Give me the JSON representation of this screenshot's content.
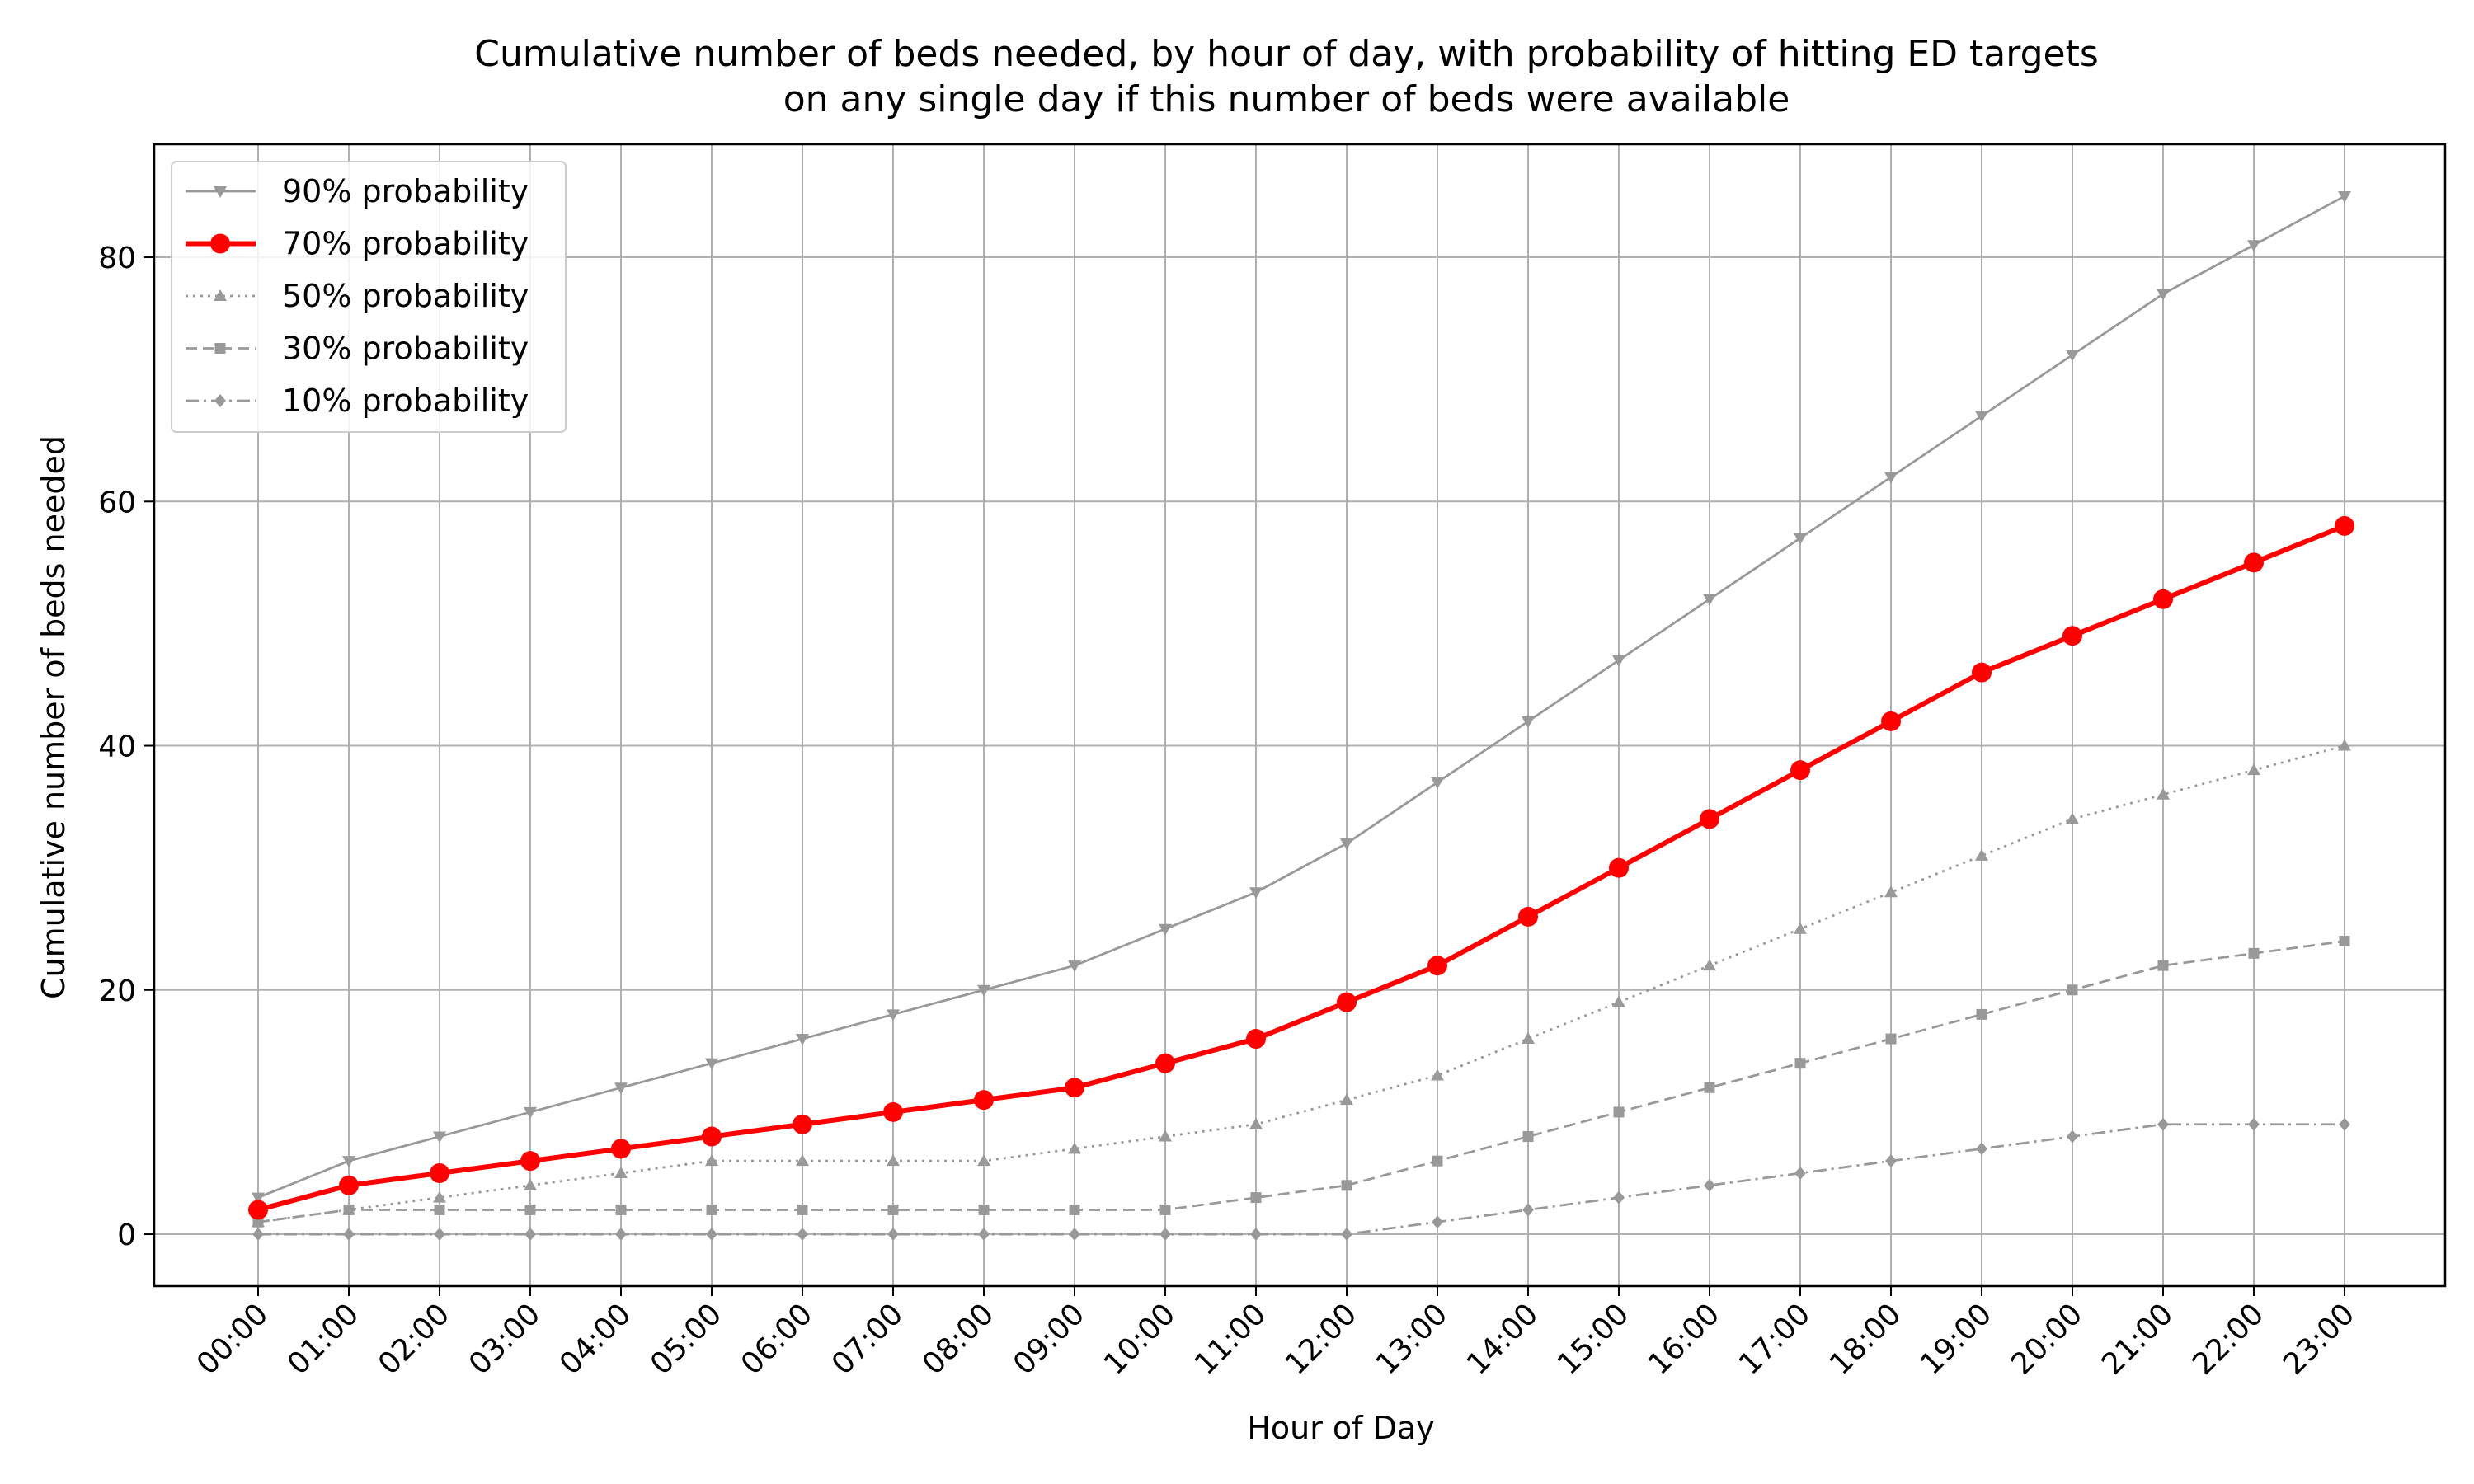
{
  "chart_data": {
    "type": "line",
    "title": "Cumulative number of beds needed, by hour of day, with probability of hitting ED targets",
    "subtitle": "on any single day if this number of beds were available",
    "xlabel": "Hour of Day",
    "ylabel": "Cumulative number of beds needed",
    "categories": [
      "00:00",
      "01:00",
      "02:00",
      "03:00",
      "04:00",
      "05:00",
      "06:00",
      "07:00",
      "08:00",
      "09:00",
      "10:00",
      "11:00",
      "12:00",
      "13:00",
      "14:00",
      "15:00",
      "16:00",
      "17:00",
      "18:00",
      "19:00",
      "20:00",
      "21:00",
      "22:00",
      "23:00"
    ],
    "yticks": [
      0,
      20,
      40,
      60,
      80
    ],
    "ylim": [
      -4.25,
      89.25
    ],
    "grid": true,
    "legend_position": "top-left",
    "series": [
      {
        "name": "90% probability",
        "color": "#999999",
        "style": "solid",
        "marker": "triangle-down",
        "emphasis": false,
        "values": [
          3,
          6,
          8,
          10,
          12,
          14,
          16,
          18,
          20,
          22,
          25,
          28,
          32,
          37,
          42,
          47,
          52,
          57,
          62,
          67,
          72,
          77,
          81,
          85
        ]
      },
      {
        "name": "70% probability",
        "color": "#ff0000",
        "style": "solid",
        "marker": "circle",
        "emphasis": true,
        "values": [
          2,
          4,
          5,
          6,
          7,
          8,
          9,
          10,
          11,
          12,
          14,
          16,
          19,
          22,
          26,
          30,
          34,
          38,
          42,
          46,
          49,
          52,
          55,
          58
        ]
      },
      {
        "name": "50% probability",
        "color": "#999999",
        "style": "dotted",
        "marker": "triangle-up",
        "emphasis": false,
        "values": [
          1,
          2,
          3,
          4,
          5,
          6,
          6,
          6,
          6,
          7,
          8,
          9,
          11,
          13,
          16,
          19,
          22,
          25,
          28,
          31,
          34,
          36,
          38,
          40
        ]
      },
      {
        "name": "30% probability",
        "color": "#999999",
        "style": "dashed",
        "marker": "square",
        "emphasis": false,
        "values": [
          1,
          2,
          2,
          2,
          2,
          2,
          2,
          2,
          2,
          2,
          2,
          3,
          4,
          6,
          8,
          10,
          12,
          14,
          16,
          18,
          20,
          22,
          23,
          24
        ]
      },
      {
        "name": "10% probability",
        "color": "#999999",
        "style": "dashdot",
        "marker": "diamond",
        "emphasis": false,
        "values": [
          0,
          0,
          0,
          0,
          0,
          0,
          0,
          0,
          0,
          0,
          0,
          0,
          0,
          1,
          2,
          3,
          4,
          5,
          6,
          7,
          8,
          9,
          9,
          9
        ]
      }
    ]
  }
}
